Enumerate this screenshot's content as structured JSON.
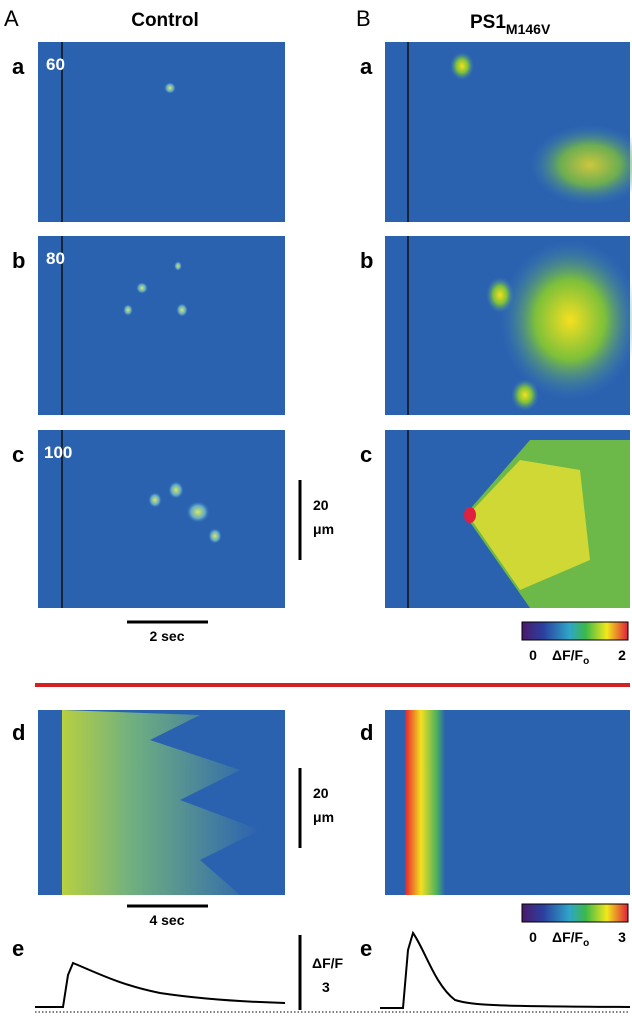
{
  "panel_A": {
    "label": "A",
    "title": "Control"
  },
  "panel_B": {
    "label": "B",
    "title": "PS1",
    "title_subscript": "M146V"
  },
  "rows_A": [
    {
      "letter": "a",
      "stimulus": "60"
    },
    {
      "letter": "b",
      "stimulus": "80"
    },
    {
      "letter": "c",
      "stimulus": "100"
    }
  ],
  "rows_B": [
    {
      "letter": "a"
    },
    {
      "letter": "b"
    },
    {
      "letter": "c"
    }
  ],
  "scale_bar_top": {
    "length": "20",
    "unit": "μm",
    "time": "2 sec"
  },
  "colorbar_top": {
    "min": "0",
    "label": "ΔF/F",
    "label_subscript": "o",
    "max": "2"
  },
  "section_d": {
    "letter_A": "d",
    "letter_B": "d",
    "length": "20",
    "unit": "μm",
    "time": "4 sec"
  },
  "colorbar_bottom": {
    "min": "0",
    "label": "ΔF/F",
    "label_subscript": "o",
    "max": "3"
  },
  "section_e": {
    "letter_A": "e",
    "letter_B": "e",
    "scale_label": "ΔF/F",
    "scale_value": "3"
  }
}
